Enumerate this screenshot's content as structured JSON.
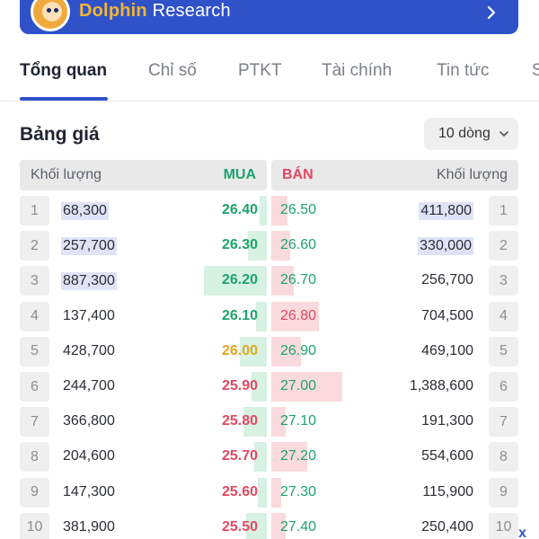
{
  "banner": {
    "brand_highlight": "Dolphin",
    "brand_rest": " Research",
    "logo_icon": "dolphin-mascot-logo",
    "chevron_icon": "chevron-right-icon"
  },
  "tabs": [
    {
      "label": "Tổng quan",
      "active": true
    },
    {
      "label": "Chỉ số",
      "active": false
    },
    {
      "label": "PTKT",
      "active": false
    },
    {
      "label": "Tài chính",
      "active": false
    },
    {
      "label": "Tin tức",
      "active": false
    },
    {
      "label": "S",
      "active": false
    }
  ],
  "order_book": {
    "title": "Bảng giá",
    "row_select": {
      "value": "10 dòng",
      "icon": "chevron-down-icon"
    },
    "headers": {
      "buy_volume": "Khối lượng",
      "buy_price": "MUA",
      "sell_price": "BÁN",
      "sell_volume": "Khối lượng"
    },
    "colors": {
      "buy": "#1ea36b",
      "sell": "#e24862",
      "reference": "#e0a81c",
      "buy_bar": "#d7f1e3",
      "sell_bar": "#fadadd",
      "highlight": "#dfe3f7"
    },
    "rows": [
      {
        "index": "1",
        "buy_volume": "68,300",
        "buy_price": "26.40",
        "buy_color": "buy",
        "buy_depth": 0.04,
        "buy_highlight": true,
        "sell_price": "26.50",
        "sell_color": "buy",
        "sell_depth": 0.1,
        "sell_volume": "411,800",
        "sell_highlight": true
      },
      {
        "index": "2",
        "buy_volume": "257,700",
        "buy_price": "26.30",
        "buy_color": "buy",
        "buy_depth": 0.12,
        "buy_highlight": true,
        "sell_price": "26.60",
        "sell_color": "buy",
        "sell_depth": 0.12,
        "sell_volume": "330,000",
        "sell_highlight": true
      },
      {
        "index": "3",
        "buy_volume": "887,300",
        "buy_price": "26.20",
        "buy_color": "buy",
        "buy_depth": 0.4,
        "buy_highlight": true,
        "sell_price": "26.70",
        "sell_color": "buy",
        "sell_depth": 0.14,
        "sell_volume": "256,700",
        "sell_highlight": false
      },
      {
        "index": "4",
        "buy_volume": "137,400",
        "buy_price": "26.10",
        "buy_color": "buy",
        "buy_depth": 0.07,
        "buy_highlight": false,
        "sell_price": "26.80",
        "sell_color": "sell",
        "sell_depth": 0.3,
        "sell_volume": "704,500",
        "sell_highlight": false
      },
      {
        "index": "5",
        "buy_volume": "428,700",
        "buy_price": "26.00",
        "buy_color": "reference",
        "buy_depth": 0.17,
        "buy_highlight": false,
        "sell_price": "26.90",
        "sell_color": "buy",
        "sell_depth": 0.19,
        "sell_volume": "469,100",
        "sell_highlight": false
      },
      {
        "index": "6",
        "buy_volume": "244,700",
        "buy_price": "25.90",
        "buy_color": "sell",
        "buy_depth": 0.1,
        "buy_highlight": false,
        "sell_price": "27.00",
        "sell_color": "buy",
        "sell_depth": 0.45,
        "sell_volume": "1,388,600",
        "sell_highlight": false
      },
      {
        "index": "7",
        "buy_volume": "366,800",
        "buy_price": "25.80",
        "buy_color": "sell",
        "buy_depth": 0.15,
        "buy_highlight": false,
        "sell_price": "27.10",
        "sell_color": "buy",
        "sell_depth": 0.09,
        "sell_volume": "191,300",
        "sell_highlight": false
      },
      {
        "index": "8",
        "buy_volume": "204,600",
        "buy_price": "25.70",
        "buy_color": "sell",
        "buy_depth": 0.08,
        "buy_highlight": false,
        "sell_price": "27.20",
        "sell_color": "buy",
        "sell_depth": 0.23,
        "sell_volume": "554,600",
        "sell_highlight": false
      },
      {
        "index": "9",
        "buy_volume": "147,300",
        "buy_price": "25.60",
        "buy_color": "sell",
        "buy_depth": 0.06,
        "buy_highlight": false,
        "sell_price": "27.30",
        "sell_color": "buy",
        "sell_depth": 0.06,
        "sell_volume": "115,900",
        "sell_highlight": false
      },
      {
        "index": "10",
        "buy_volume": "381,900",
        "buy_price": "25.50",
        "buy_color": "sell",
        "buy_depth": 0.13,
        "buy_highlight": false,
        "sell_price": "27.40",
        "sell_color": "buy",
        "sell_depth": 0.09,
        "sell_volume": "250,400",
        "sell_highlight": false
      }
    ]
  },
  "overlay": {
    "close_label": "x",
    "close_icon": "close-icon"
  }
}
